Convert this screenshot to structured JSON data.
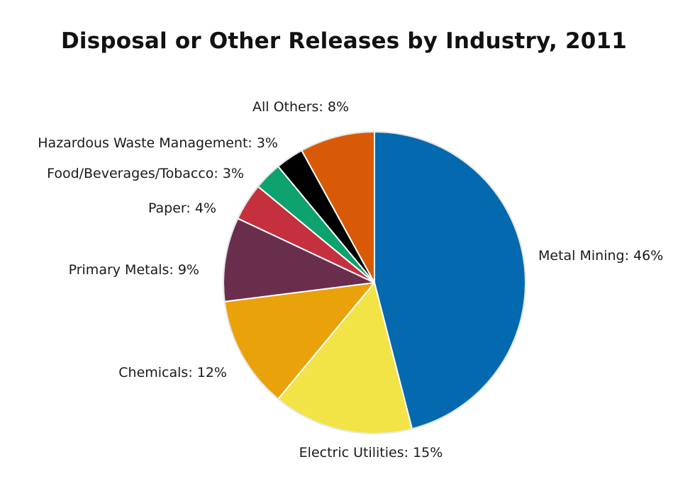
{
  "chart_data": {
    "type": "pie",
    "title": "Disposal or Other Releases by Industry, 2011",
    "start_angle_deg": 0,
    "direction": "clockwise",
    "slices": [
      {
        "label": "Metal Mining: 46%",
        "name": "Metal Mining",
        "value": 46,
        "color": "#0569AF"
      },
      {
        "label": "Electric Utilities: 15%",
        "name": "Electric Utilities",
        "value": 15,
        "color": "#F2E347"
      },
      {
        "label": "Chemicals: 12%",
        "name": "Chemicals",
        "value": 12,
        "color": "#E9A20A"
      },
      {
        "label": "Primary Metals: 9%",
        "name": "Primary Metals",
        "value": 9,
        "color": "#6A2E4D"
      },
      {
        "label": "Paper: 4%",
        "name": "Paper",
        "value": 4,
        "color": "#C5303E"
      },
      {
        "label": "Food/Beverages/Tobacco: 3%",
        "name": "Food/Beverages/Tobacco",
        "value": 3,
        "color": "#0EA26F"
      },
      {
        "label": "Hazardous Waste Management: 3%",
        "name": "Hazardous Waste Management",
        "value": 3,
        "color": "#000000"
      },
      {
        "label": "All Others: 8%",
        "name": "All Others",
        "value": 8,
        "color": "#D95A06"
      }
    ]
  }
}
